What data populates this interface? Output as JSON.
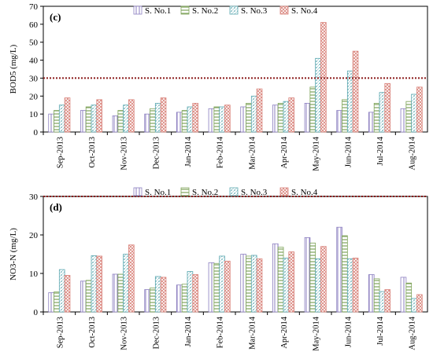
{
  "chart_data": [
    {
      "type": "bar",
      "panel_label": "(c)",
      "ylabel": "BOD5 (mg/L)",
      "ylim": [
        0,
        70
      ],
      "yticks": [
        "0",
        "10",
        "20",
        "30",
        "40",
        "50",
        "60",
        "70"
      ],
      "threshold": 30,
      "categories": [
        "Sep-2013",
        "Oct-2013",
        "Nov-2013",
        "Dec-2013",
        "Jan-2014",
        "Feb-2014",
        "Mar-2014",
        "Apr-2014",
        "May-2014",
        "Jun-2014",
        "Jul-2014",
        "Aug-2014"
      ],
      "series": [
        {
          "name": "S. No.1",
          "values": [
            10,
            12,
            9,
            10,
            11,
            13,
            14,
            15,
            16,
            12,
            11,
            13
          ]
        },
        {
          "name": "S. No.2",
          "values": [
            12,
            14,
            12,
            13,
            12,
            14,
            16,
            16,
            25,
            18,
            16,
            17
          ]
        },
        {
          "name": "S. No.3",
          "values": [
            15,
            15,
            15,
            16,
            14,
            14,
            20,
            17,
            41,
            34,
            22,
            21
          ]
        },
        {
          "name": "S. No.4",
          "values": [
            19,
            18,
            18,
            19,
            16,
            15,
            24,
            19,
            61,
            45,
            27,
            25
          ]
        }
      ]
    },
    {
      "type": "bar",
      "panel_label": "(d)",
      "ylabel": "NO3-N (mg/L)",
      "ylim": [
        0,
        30
      ],
      "yticks": [
        "0",
        "10",
        "20",
        "30"
      ],
      "threshold": 30,
      "categories": [
        "Sep-2013",
        "Oct-2013",
        "Nov-2013",
        "Dec-2013",
        "Jan-2014",
        "Feb-2014",
        "Mar-2014",
        "Apr-2014",
        "May-2014",
        "Jun-2014",
        "Jul-2014",
        "Aug-2014"
      ],
      "series": [
        {
          "name": "S. No.1",
          "values": [
            5.0,
            8.0,
            9.8,
            5.8,
            7.0,
            12.8,
            15.0,
            17.7,
            19.3,
            22.0,
            9.7,
            9.0
          ]
        },
        {
          "name": "S. No.2",
          "values": [
            5.2,
            8.2,
            9.8,
            6.2,
            7.2,
            12.6,
            14.5,
            16.8,
            17.9,
            19.8,
            8.6,
            7.5
          ]
        },
        {
          "name": "S. No.3",
          "values": [
            11.0,
            14.6,
            15.0,
            9.2,
            10.5,
            14.5,
            14.7,
            14.0,
            13.8,
            13.8,
            5.3,
            3.5
          ]
        },
        {
          "name": "S. No.4",
          "values": [
            9.5,
            14.5,
            17.4,
            9.0,
            9.7,
            13.2,
            13.8,
            15.6,
            17.0,
            14.0,
            5.8,
            4.5
          ]
        }
      ]
    }
  ],
  "colors": {
    "s1": "#8c7fc0",
    "s2": "#7fa45a",
    "s3": "#5aa7b0",
    "s4": "#d9827a",
    "threshold": "#8b1a1a"
  }
}
